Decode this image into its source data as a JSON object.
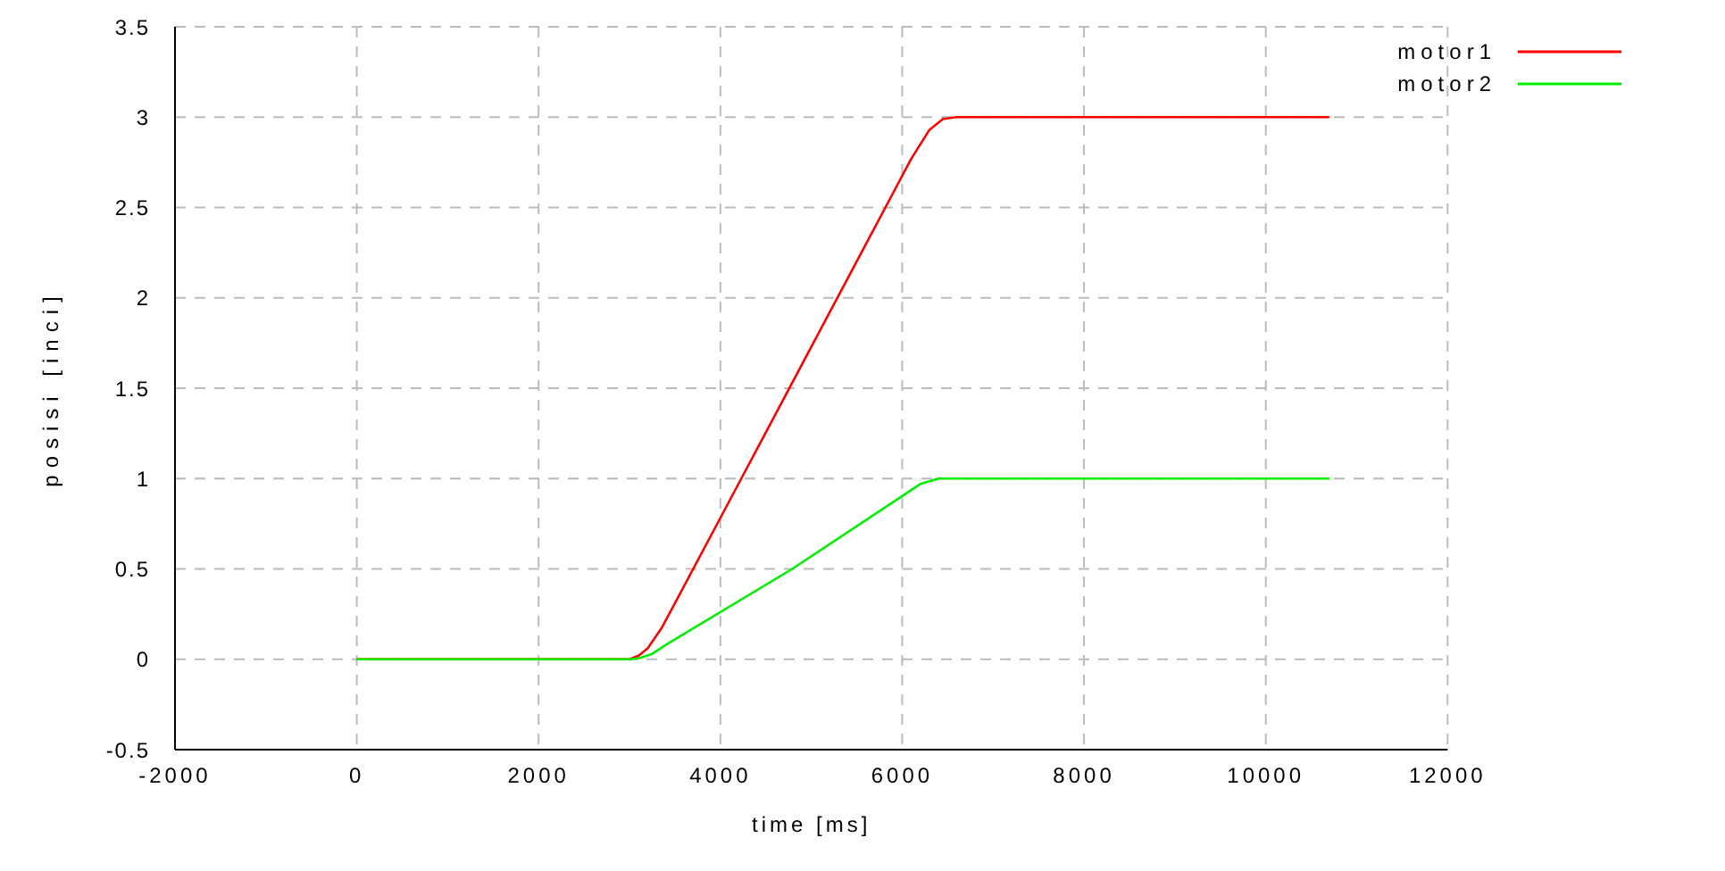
{
  "chart_data": {
    "type": "line",
    "xlabel": "time [ms]",
    "ylabel": "posisi [inci]",
    "xlim": [
      -2000,
      12000
    ],
    "xticks": [
      -2000,
      0,
      2000,
      4000,
      6000,
      8000,
      10000,
      12000
    ],
    "ylim": [
      -0.5,
      3.5
    ],
    "yticks": [
      -0.5,
      0,
      0.5,
      1,
      1.5,
      2,
      2.5,
      3,
      3.5
    ],
    "grid": true,
    "legend": "top right",
    "marker": "none",
    "line_style": "solid",
    "series": [
      {
        "name": "motor1",
        "color": "#ff0000",
        "x": [
          0,
          3000,
          3100,
          3200,
          3350,
          3500,
          4230,
          5815,
          6100,
          6300,
          6450,
          6600,
          10700
        ],
        "values": [
          0,
          0,
          0.02,
          0.06,
          0.17,
          0.31,
          1,
          2.5,
          2.77,
          2.93,
          2.99,
          3,
          3
        ]
      },
      {
        "name": "motor2",
        "color": "#00ee00",
        "x": [
          0,
          3000,
          3100,
          3250,
          3400,
          4790,
          6200,
          6400,
          10700
        ],
        "values": [
          0,
          0,
          0.005,
          0.03,
          0.08,
          0.5,
          0.97,
          1,
          1
        ]
      }
    ]
  }
}
